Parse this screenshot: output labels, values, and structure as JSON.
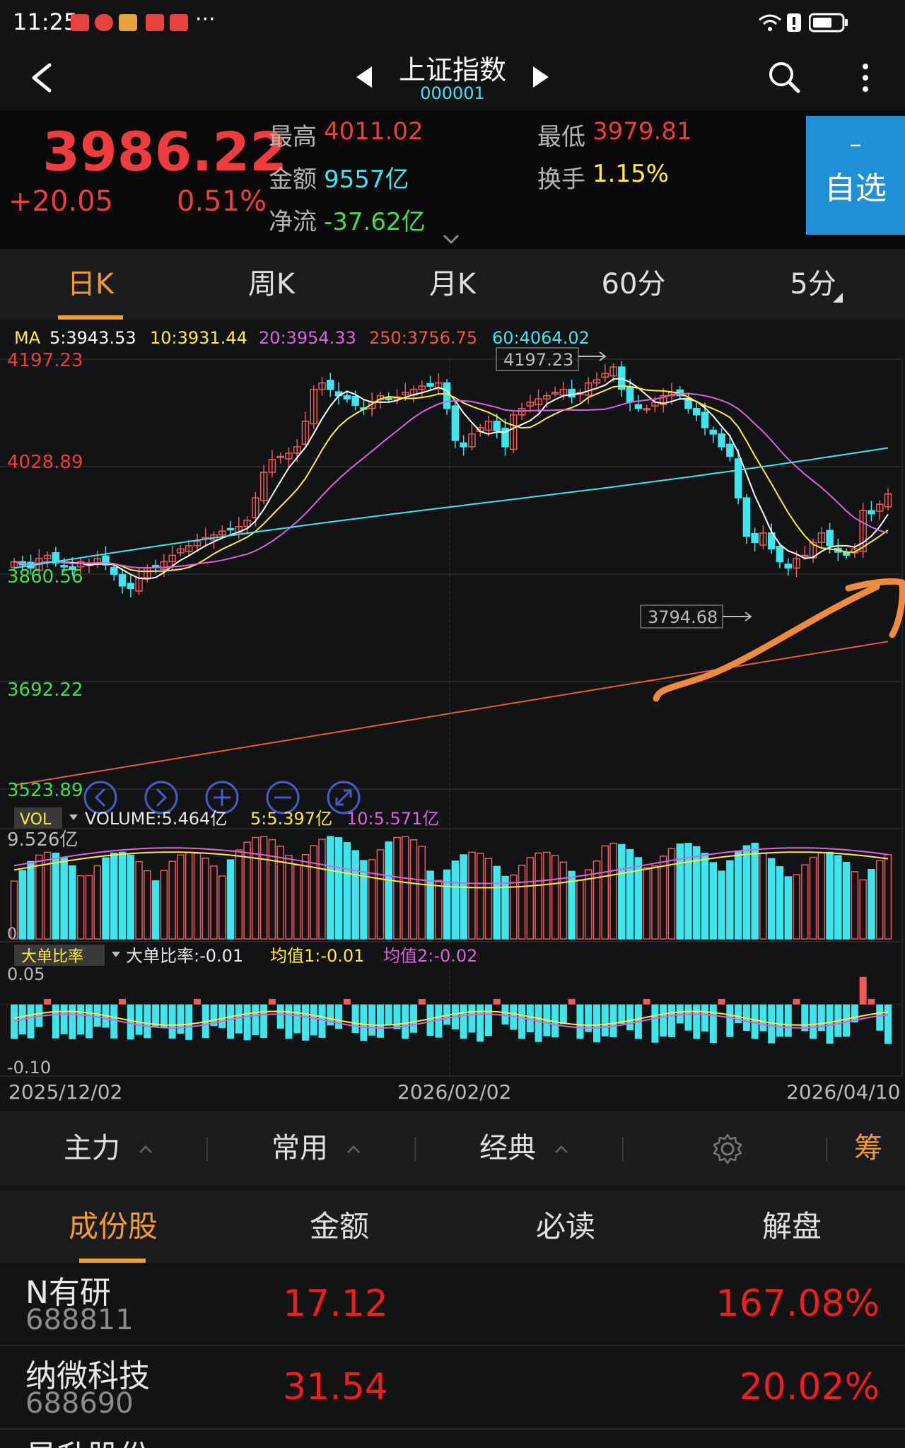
{
  "status_bar": {
    "time": "11:25",
    "more": "···"
  },
  "header": {
    "title": "上证指数",
    "code": "000001"
  },
  "quote": {
    "price": "3986.22",
    "change": "+20.05",
    "change_pct": "0.51%",
    "high_label": "最高",
    "high": "4011.02",
    "low_label": "最低",
    "low": "3979.81",
    "amount_label": "金额",
    "amount": "9557亿",
    "turnover_label": "换手",
    "turnover": "1.15%",
    "netflow_label": "净流",
    "netflow": "-37.62亿",
    "fav_minus": "–",
    "fav_label": "自选"
  },
  "period_tabs": [
    "日K",
    "周K",
    "月K",
    "60分",
    "5分"
  ],
  "chart": {
    "ma": {
      "prefix": "MA",
      "items": [
        {
          "label": "5:3943.53",
          "color": "#ffffff"
        },
        {
          "label": "10:3931.44",
          "color": "#ffee33"
        },
        {
          "label": "20:3954.33",
          "color": "#e060e0"
        },
        {
          "label": "250:3756.75",
          "color": "#f05a3c"
        },
        {
          "label": "60:4064.02",
          "color": "#3ee6f0"
        }
      ]
    },
    "price_ticks": [
      {
        "label": "4197.23",
        "value": 4197.23,
        "color": "#f03c3c"
      },
      {
        "label": "4028.89",
        "value": 4028.89,
        "color": "#f03c3c"
      },
      {
        "label": "3860.56",
        "value": 3860.56,
        "color": "#3ee04e"
      },
      {
        "label": "3692.22",
        "value": 3692.22,
        "color": "#3ee04e"
      },
      {
        "label": "3523.89",
        "value": 3523.89,
        "color": "#3ee04e"
      }
    ],
    "price_range": [
      3523.89,
      4197.23
    ],
    "high_marker": {
      "label": "4197.23",
      "value": 4197.23
    },
    "low_marker": {
      "label": "3794.68",
      "value": 3794.68
    },
    "volume": {
      "tag": "VOL",
      "summary": "VOLUME:5.464亿",
      "ma5": "5:5.397亿",
      "ma10": "10:5.571亿",
      "max_label": "9.526亿",
      "zero_label": "0",
      "max": 9.526
    },
    "big_order": {
      "tag": "大单比率",
      "summary": "大单比率:-0.01",
      "avg1": "均值1:-0.01",
      "avg2": "均值2:-0.02",
      "top_label": "0.05",
      "bottom_label": "-0.10",
      "range": [
        -0.1,
        0.05
      ]
    },
    "dates": [
      "2025/12/02",
      "2026/02/02",
      "2026/04/10"
    ]
  },
  "chart_data": {
    "type": "candlestick",
    "x_ticks": [
      "2025/12/02",
      "2026/02/02",
      "2026/04/10"
    ],
    "ylim": [
      3523.89,
      4197.23
    ],
    "close": [
      3880,
      3875,
      3870,
      3885,
      3890,
      3878,
      3872,
      3868,
      3880,
      3876,
      3885,
      3875,
      3860,
      3842,
      3838,
      3855,
      3870,
      3872,
      3880,
      3890,
      3900,
      3905,
      3912,
      3918,
      3922,
      3928,
      3930,
      3935,
      3945,
      3980,
      4020,
      4040,
      4045,
      4050,
      4060,
      4100,
      4150,
      4160,
      4150,
      4140,
      4135,
      4125,
      4120,
      4130,
      4140,
      4135,
      4138,
      4145,
      4150,
      4155,
      4155,
      4160,
      4120,
      4070,
      4060,
      4080,
      4090,
      4100,
      4085,
      4060,
      4110,
      4120,
      4130,
      4135,
      4140,
      4145,
      4150,
      4138,
      4145,
      4160,
      4165,
      4175,
      4185,
      4150,
      4130,
      4120,
      4120,
      4130,
      4140,
      4145,
      4140,
      4120,
      4110,
      4090,
      4080,
      4060,
      4045,
      3980,
      3920,
      3910,
      3925,
      3900,
      3880,
      3870,
      3885,
      3890,
      3910,
      3925,
      3905,
      3895,
      3890,
      3900,
      3960,
      3955,
      3970,
      3986
    ],
    "volume_approx_yi": "5.0 - 9.5",
    "big_order_range": [
      -0.1,
      0.05
    ]
  },
  "toolbar": {
    "items": [
      "主力",
      "常用",
      "经典"
    ],
    "right": "筹"
  },
  "stock_tabs": [
    "成份股",
    "金额",
    "必读",
    "解盘"
  ],
  "stocks": [
    {
      "name": "N有研",
      "code": "688811",
      "price": "17.12",
      "pct": "167.08%"
    },
    {
      "name": "纳微科技",
      "code": "688690",
      "price": "31.54",
      "pct": "20.02%"
    },
    {
      "name": "星升股份",
      "code": "",
      "price": "",
      "pct": ""
    }
  ]
}
